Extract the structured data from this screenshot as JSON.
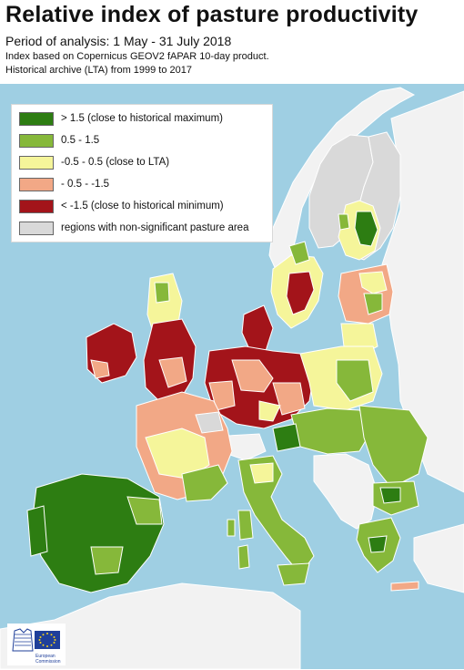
{
  "header": {
    "title": "Relative index of pasture productivity",
    "period": "Period of analysis: 1 May - 31 July 2018",
    "note_line1": "Index based on Copernicus GEOV2 fAPAR 10-day product.",
    "note_line2": "Historical archive (LTA) from 1999 to 2017"
  },
  "legend": {
    "items": [
      {
        "label": "> 1.5 (close to historical maximum)",
        "color": "#2d7d12"
      },
      {
        "label": "0.5 - 1.5",
        "color": "#86b83a"
      },
      {
        "label": "-0.5 - 0.5 (close to LTA)",
        "color": "#f5f59a"
      },
      {
        "label": "- 0.5 - -1.5",
        "color": "#f2a886"
      },
      {
        "label": "< -1.5 (close to historical minimum)",
        "color": "#a3141a"
      },
      {
        "label": "regions with non-significant pasture area",
        "color": "#d9d9d9"
      }
    ]
  },
  "map": {
    "sea_color": "#9fcfe3",
    "non_eu_land_color": "#f2f2f2",
    "border_color": "#ffffff"
  },
  "logo": {
    "text_line1": "European",
    "text_line2": "Commission",
    "flag_color": "#1f3f9a",
    "star_color": "#f6d21a"
  }
}
